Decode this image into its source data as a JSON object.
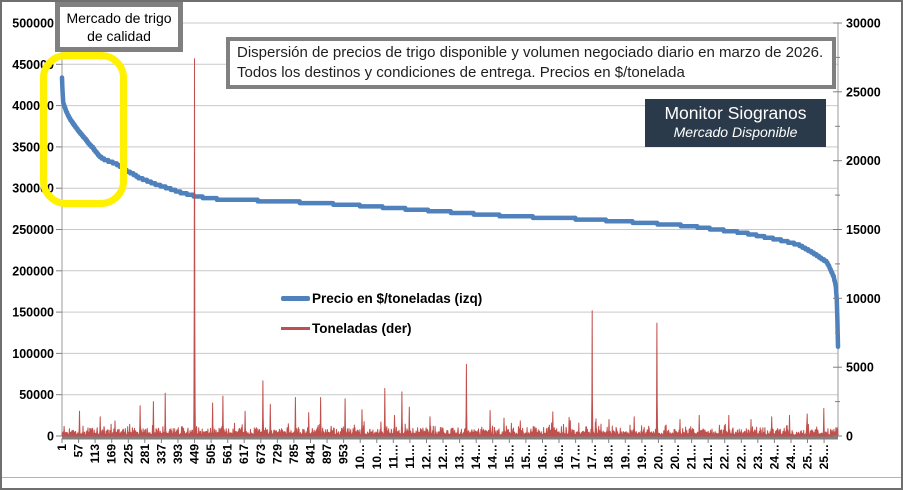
{
  "boxes": {
    "quality": {
      "line1": "Mercado de trigo",
      "line2": "de calidad"
    },
    "title": "Dispersión de precios de trigo disponible y volumen negociado diario en marzo de 2026. Todos los destinos y condiciones de entrega. Precios en $/tonelada",
    "brand": {
      "line1": "Monitor Siogranos",
      "line2": "Mercado Disponible"
    }
  },
  "legend": {
    "price": "Precio en $/toneladas (izq)",
    "volume": "Toneladas (der)"
  },
  "colors": {
    "price_series": "#4F81BD",
    "volume_series": "#C0504D",
    "grid": "#C9C9C9",
    "axis": "#808080",
    "brand_bg": "#2B3A4B",
    "highlight_ring": "#FFF100",
    "box_border": "#808080"
  },
  "chart_data": {
    "type": "line",
    "title": "Dispersión de precios de trigo disponible y volumen negociado diario en marzo de 2026. Todos los destinos y condiciones de entrega. Precios en $/tonelada",
    "legend_entries": [
      "Precio en $/toneladas (izq)",
      "Toneladas (der)"
    ],
    "layout_hints": {
      "grid": "horizontal-only",
      "legend_position": "inside-center-left",
      "dual_axis": true,
      "x_labels_rotated_90": true
    },
    "n_points": 2624,
    "x_axis": {
      "start": 1,
      "step": 56,
      "labels": [
        "1",
        "57",
        "113",
        "169",
        "225",
        "281",
        "337",
        "393",
        "449",
        "505",
        "561",
        "617",
        "673",
        "729",
        "785",
        "841",
        "897",
        "953",
        "10…",
        "10…",
        "11…",
        "11…",
        "12…",
        "12…",
        "13…",
        "14…",
        "14…",
        "15…",
        "15…",
        "16…",
        "16…",
        "17…",
        "17…",
        "18…",
        "19…",
        "19…",
        "20…",
        "20…",
        "21…",
        "21…",
        "22…",
        "22…",
        "23…",
        "24…",
        "24…",
        "25…",
        "25…"
      ]
    },
    "left_axis": {
      "min": 0,
      "max": 500000,
      "step": 50000,
      "labels": [
        "0",
        "50000",
        "100000",
        "150000",
        "200000",
        "250000",
        "300000",
        "350000",
        "400000",
        "450000",
        "500000"
      ]
    },
    "right_axis": {
      "min": 0,
      "max": 30000,
      "step": 5000,
      "minor_step": 2500,
      "labels": [
        "0",
        "5000",
        "10000",
        "15000",
        "20000",
        "25000",
        "30000"
      ]
    },
    "series": [
      {
        "name": "Precio en $/toneladas (izq)",
        "axis": "left",
        "color": "#4F81BD",
        "anchors": [
          [
            1,
            433000
          ],
          [
            3,
            416000
          ],
          [
            5,
            404000
          ],
          [
            14,
            394000
          ],
          [
            26,
            385000
          ],
          [
            39,
            378000
          ],
          [
            53,
            371000
          ],
          [
            67,
            365000
          ],
          [
            79,
            360000
          ],
          [
            90,
            354500
          ],
          [
            105,
            349000
          ],
          [
            116,
            344000
          ],
          [
            127,
            339000
          ],
          [
            140,
            335500
          ],
          [
            154,
            333500
          ],
          [
            169,
            331500
          ],
          [
            186,
            329000
          ],
          [
            203,
            325500
          ],
          [
            217,
            321500
          ],
          [
            240,
            317500
          ],
          [
            262,
            312500
          ],
          [
            292,
            308500
          ],
          [
            320,
            304500
          ],
          [
            356,
            300500
          ],
          [
            399,
            295200
          ],
          [
            456,
            290000
          ],
          [
            512,
            287200
          ],
          [
            602,
            285800
          ],
          [
            737,
            284000
          ],
          [
            872,
            282000
          ],
          [
            1007,
            279000
          ],
          [
            1142,
            275500
          ],
          [
            1277,
            272000
          ],
          [
            1412,
            268500
          ],
          [
            1547,
            265500
          ],
          [
            1682,
            264000
          ],
          [
            1817,
            261500
          ],
          [
            1952,
            258500
          ],
          [
            2087,
            255200
          ],
          [
            2154,
            252800
          ],
          [
            2215,
            249800
          ],
          [
            2266,
            248000
          ],
          [
            2323,
            244800
          ],
          [
            2380,
            240700
          ],
          [
            2424,
            237600
          ],
          [
            2458,
            234700
          ],
          [
            2491,
            231500
          ],
          [
            2515,
            226700
          ],
          [
            2536,
            222600
          ],
          [
            2553,
            218600
          ],
          [
            2570,
            214500
          ],
          [
            2587,
            210400
          ],
          [
            2600,
            200400
          ],
          [
            2610,
            192300
          ],
          [
            2617,
            180200
          ],
          [
            2620,
            164000
          ],
          [
            2622,
            140000
          ],
          [
            2624,
            107500
          ]
        ]
      },
      {
        "name": "Toneladas (der)",
        "axis": "right",
        "color": "#C0504D",
        "spikes": [
          [
            60,
            1800
          ],
          [
            130,
            1400
          ],
          [
            180,
            1100
          ],
          [
            265,
            2200
          ],
          [
            310,
            2500
          ],
          [
            350,
            3100
          ],
          [
            449,
            27400
          ],
          [
            510,
            2400
          ],
          [
            545,
            2900
          ],
          [
            620,
            1800
          ],
          [
            680,
            4000
          ],
          [
            705,
            2300
          ],
          [
            790,
            2800
          ],
          [
            835,
            1700
          ],
          [
            875,
            2800
          ],
          [
            958,
            2700
          ],
          [
            1015,
            1900
          ],
          [
            1092,
            3450
          ],
          [
            1125,
            1500
          ],
          [
            1150,
            3200
          ],
          [
            1175,
            2100
          ],
          [
            1245,
            1400
          ],
          [
            1368,
            5200
          ],
          [
            1448,
            1850
          ],
          [
            1495,
            1300
          ],
          [
            1550,
            1100
          ],
          [
            1660,
            1750
          ],
          [
            1715,
            1350
          ],
          [
            1793,
            9100
          ],
          [
            1850,
            1200
          ],
          [
            1935,
            1400
          ],
          [
            2012,
            8200
          ],
          [
            2090,
            1200
          ],
          [
            2155,
            1500
          ],
          [
            2255,
            1500
          ],
          [
            2330,
            1200
          ],
          [
            2400,
            1400
          ],
          [
            2460,
            1500
          ],
          [
            2520,
            1600
          ],
          [
            2576,
            2000
          ]
        ],
        "noise": {
          "seed": 987654321,
          "base": 50,
          "amp": 300,
          "bump_chance": 0.28,
          "bump_amp": 450,
          "tall_chance": 0.055,
          "tall_amp": 700
        }
      }
    ]
  }
}
